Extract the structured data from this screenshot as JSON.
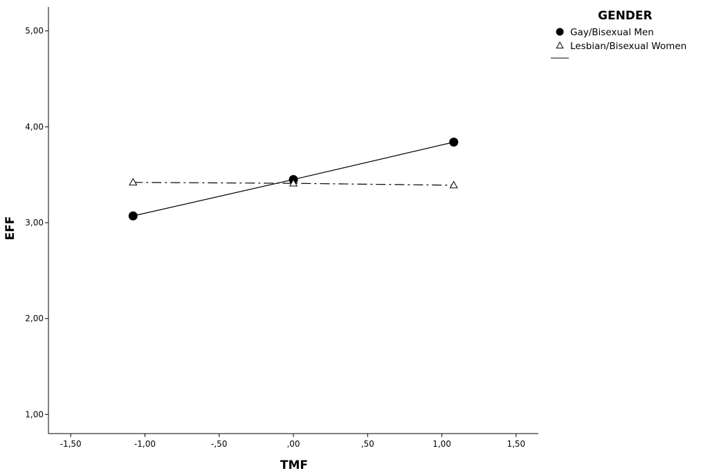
{
  "chart_data": {
    "type": "line",
    "xlabel": "TMF",
    "ylabel": "EFF",
    "xlim": [
      -1.65,
      1.65
    ],
    "ylim": [
      0.8,
      5.25
    ],
    "x_ticks": [
      -1.5,
      -1.0,
      -0.5,
      0.0,
      0.5,
      1.0,
      1.5
    ],
    "x_tick_labels": [
      "-1,50",
      "-1,00",
      "-,50",
      ",00",
      ",50",
      "1,00",
      "1,50"
    ],
    "y_ticks": [
      1.0,
      2.0,
      3.0,
      4.0,
      5.0
    ],
    "y_tick_labels": [
      "1,00",
      "2,00",
      "3,00",
      "4,00",
      "5,00"
    ],
    "grid": false,
    "legend": {
      "title": "GENDER",
      "placement": "right-top",
      "entries": [
        "Gay/Bisexual Men",
        "Lesbian/Bisexual Women"
      ]
    },
    "series": [
      {
        "name": "Gay/Bisexual Men",
        "marker": "filled-circle",
        "line": "solid",
        "color": "#000000",
        "x": [
          -1.08,
          0.0,
          1.08
        ],
        "y": [
          3.07,
          3.45,
          3.84
        ]
      },
      {
        "name": "Lesbian/Bisexual Women",
        "marker": "open-triangle",
        "line": "dash-dot",
        "color": "#000000",
        "x": [
          -1.08,
          0.0,
          1.08
        ],
        "y": [
          3.42,
          3.41,
          3.39
        ]
      }
    ]
  }
}
